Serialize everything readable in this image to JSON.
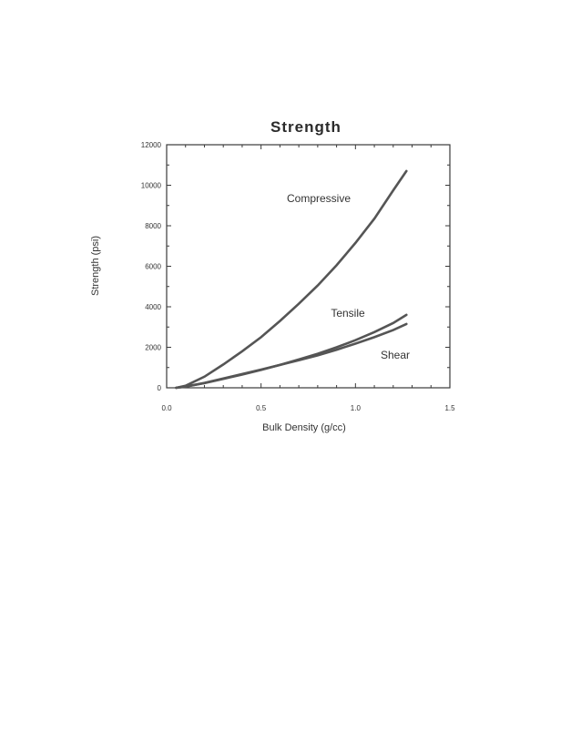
{
  "chart_data": {
    "type": "line",
    "title": "Strength",
    "xlabel": "Bulk Density (g/cc)",
    "ylabel": "Strength (psi)",
    "xlim": [
      0.0,
      1.5
    ],
    "ylim": [
      0,
      12000
    ],
    "xticks": [
      {
        "value": 0.0,
        "label": "0.0"
      },
      {
        "value": 0.5,
        "label": "0.5"
      },
      {
        "value": 1.0,
        "label": "1.0"
      },
      {
        "value": 1.5,
        "label": "1.5"
      }
    ],
    "yticks": [
      {
        "value": 0,
        "label": "0"
      },
      {
        "value": 2000,
        "label": "2000"
      },
      {
        "value": 4000,
        "label": "4000"
      },
      {
        "value": 6000,
        "label": "6000"
      },
      {
        "value": 8000,
        "label": "8000"
      },
      {
        "value": 10000,
        "label": "10000"
      },
      {
        "value": 12000,
        "label": "12000"
      }
    ],
    "grid": false,
    "series": [
      {
        "name": "Compressive",
        "color": "#555555",
        "x": [
          0.05,
          0.1,
          0.2,
          0.3,
          0.4,
          0.5,
          0.6,
          0.7,
          0.8,
          0.9,
          1.0,
          1.1,
          1.2,
          1.27
        ],
        "y": [
          0,
          100,
          550,
          1150,
          1800,
          2500,
          3300,
          4150,
          5050,
          6050,
          7150,
          8350,
          9750,
          10700
        ]
      },
      {
        "name": "Tensile",
        "color": "#555555",
        "x": [
          0.05,
          0.1,
          0.2,
          0.3,
          0.4,
          0.5,
          0.6,
          0.7,
          0.8,
          0.9,
          1.0,
          1.1,
          1.2,
          1.27
        ],
        "y": [
          0,
          60,
          230,
          440,
          650,
          880,
          1130,
          1400,
          1680,
          2000,
          2350,
          2750,
          3200,
          3600
        ]
      },
      {
        "name": "Shear",
        "color": "#555555",
        "x": [
          0.05,
          0.1,
          0.2,
          0.3,
          0.4,
          0.5,
          0.6,
          0.7,
          0.8,
          0.9,
          1.0,
          1.1,
          1.2,
          1.27
        ],
        "y": [
          0,
          60,
          240,
          460,
          680,
          900,
          1130,
          1360,
          1600,
          1880,
          2180,
          2500,
          2850,
          3150
        ]
      }
    ]
  }
}
